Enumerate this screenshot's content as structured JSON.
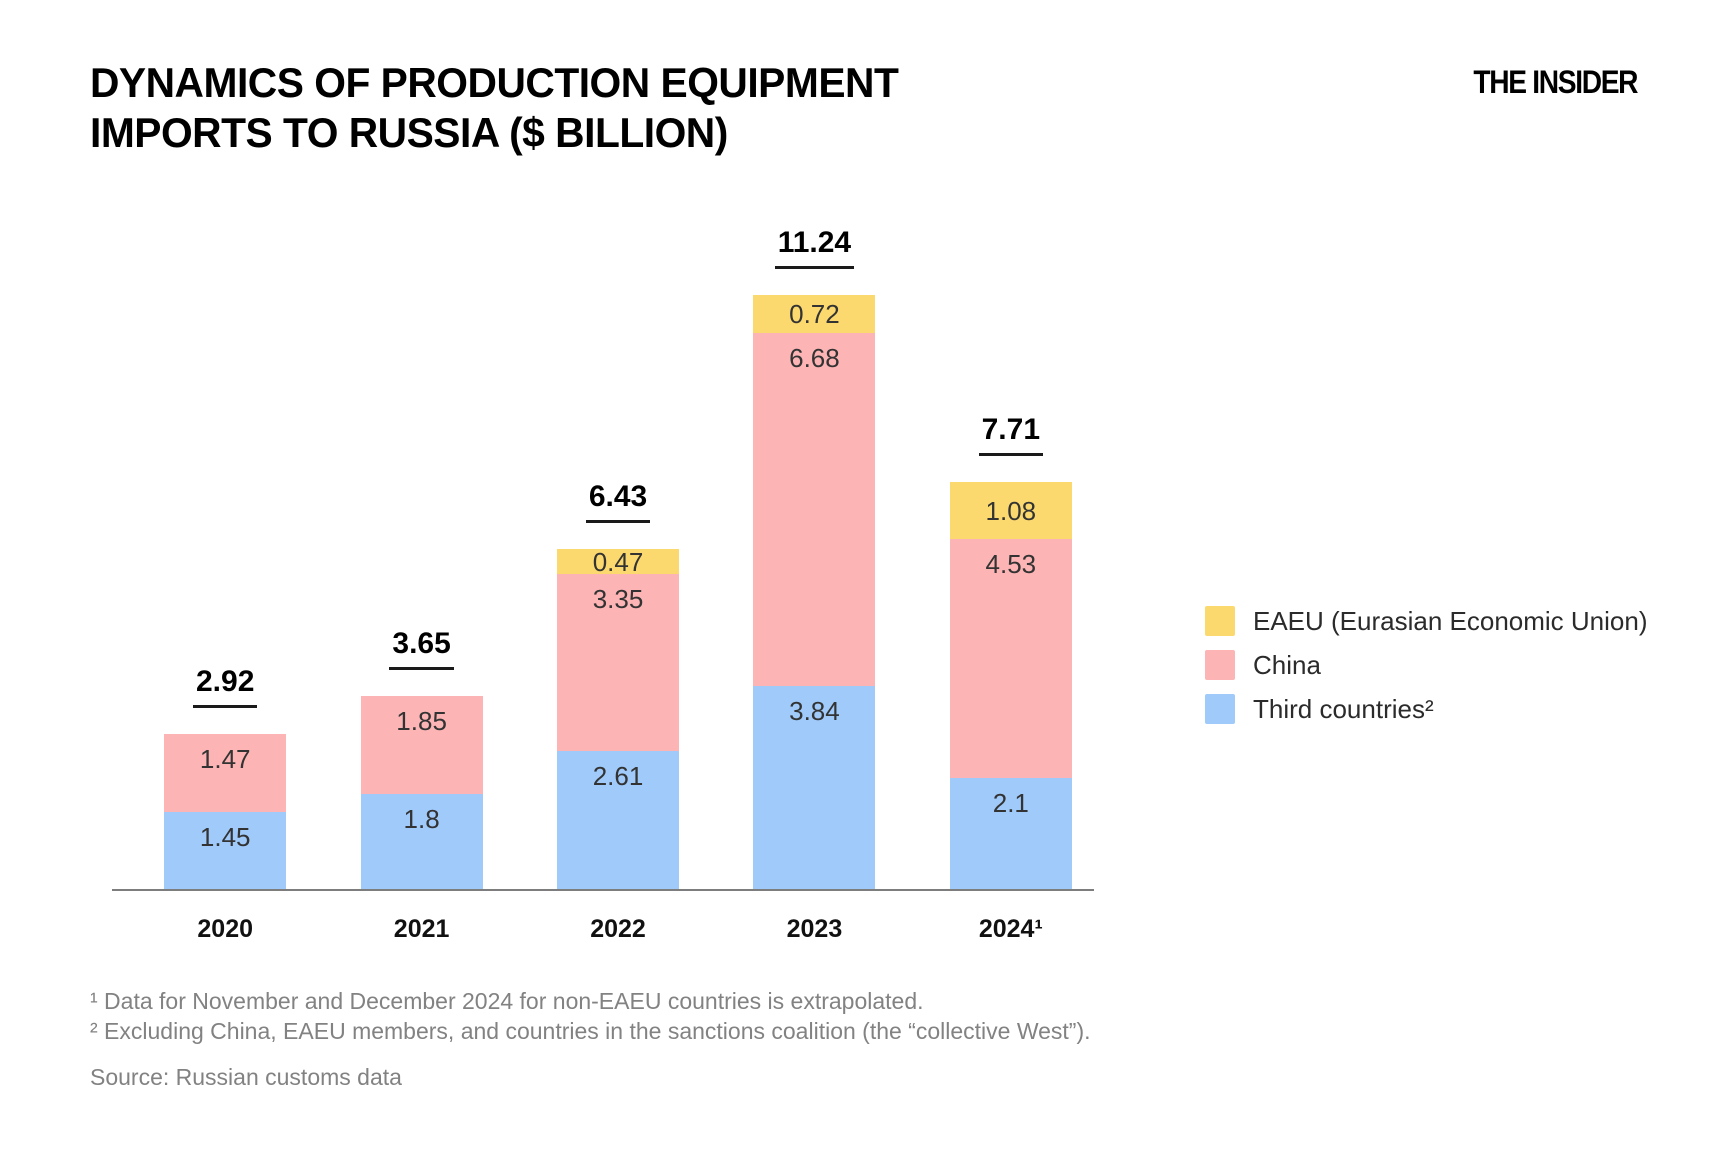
{
  "header": {
    "title_line1": "DYNAMICS OF PRODUCTION EQUIPMENT",
    "title_line2": "IMPORTS TO RUSSIA ($ BILLION)",
    "logo": "THE INSIDER"
  },
  "chart_data": {
    "type": "bar",
    "stacked": true,
    "title": "DYNAMICS OF PRODUCTION EQUIPMENT IMPORTS TO RUSSIA ($ BILLION)",
    "unit": "$ billion",
    "categories": [
      "2020",
      "2021",
      "2022",
      "2023",
      "2024¹"
    ],
    "series": [
      {
        "name": "Third countries²",
        "color": "#9FCAFA",
        "values": [
          1.45,
          1.8,
          2.61,
          3.84,
          2.1
        ]
      },
      {
        "name": "China",
        "color": "#FCB4B5",
        "values": [
          1.47,
          1.85,
          3.35,
          6.68,
          4.53
        ]
      },
      {
        "name": "EAEU (Eurasian Economic Union)",
        "color": "#FCD96E",
        "values": [
          null,
          null,
          0.47,
          0.72,
          1.08
        ]
      }
    ],
    "stack_order_bottom_to_top": [
      "Third countries²",
      "China",
      "EAEU (Eurasian Economic Union)"
    ],
    "totals": [
      2.92,
      3.65,
      6.43,
      11.24,
      7.71
    ],
    "totals_underlined": true,
    "ylim": [
      0,
      11.24
    ],
    "grid": false,
    "legend_position": "right"
  },
  "legend": {
    "items": [
      {
        "label": "EAEU (Eurasian Economic Union)",
        "color": "#FCD96E"
      },
      {
        "label": "China",
        "color": "#FCB4B5"
      },
      {
        "label": "Third countries²",
        "color": "#9FCAFA"
      }
    ]
  },
  "footnotes": {
    "line1": "¹ Data for November and December 2024 for non-EAEU countries is extrapolated.",
    "line2": "² Excluding China, EAEU members, and countries in the sanctions coalition (the “collective West”).",
    "source": "Source: Russian customs data"
  }
}
